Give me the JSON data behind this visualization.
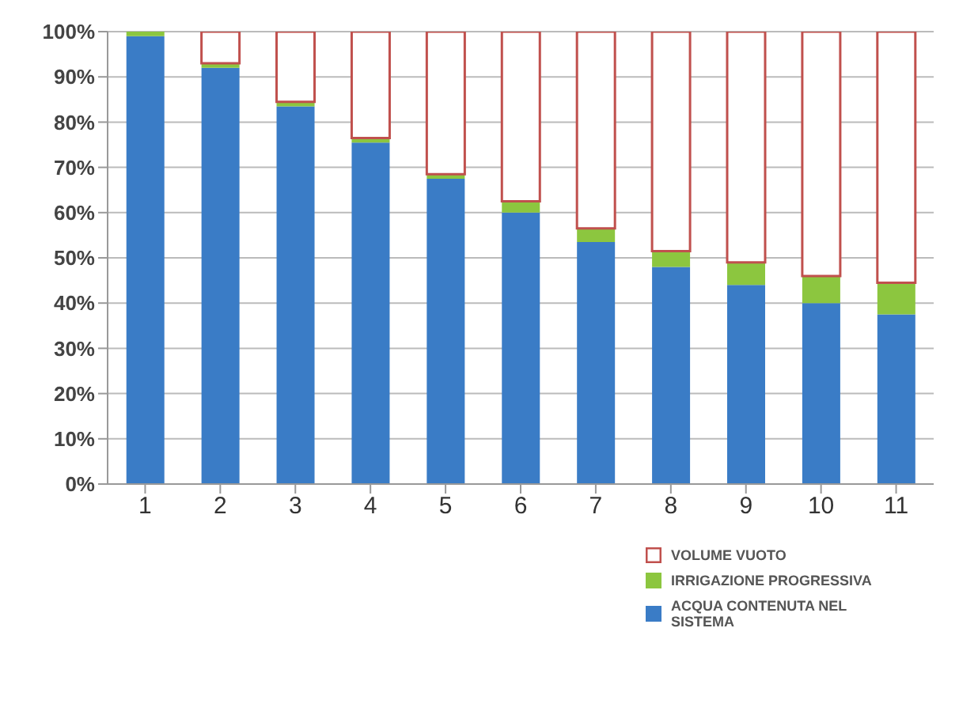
{
  "chart_data": {
    "type": "bar",
    "stacked": true,
    "categories": [
      "1",
      "2",
      "3",
      "4",
      "5",
      "6",
      "7",
      "8",
      "9",
      "10",
      "11"
    ],
    "series": [
      {
        "name": "ACQUA CONTENUTA NEL SISTEMA",
        "color": "#3a7cc6",
        "values": [
          99,
          92,
          83.5,
          75.5,
          67.5,
          60,
          53.5,
          48,
          44,
          40,
          37.5
        ]
      },
      {
        "name": "IRRIGAZIONE PROGRESSIVA",
        "color": "#8cc63f",
        "values": [
          1,
          1,
          1,
          1,
          1,
          2.5,
          3,
          3.5,
          5,
          6,
          7
        ]
      },
      {
        "name": "VOLUME VUOTO",
        "color": "#c0504d",
        "values": [
          0,
          7,
          15.5,
          23.5,
          31.5,
          37.5,
          43.5,
          48.5,
          51,
          54,
          55.5
        ]
      }
    ],
    "ylim": [
      0,
      100
    ],
    "yticks": [
      {
        "value": 0,
        "label": "0%"
      },
      {
        "value": 10,
        "label": "10%"
      },
      {
        "value": 20,
        "label": "20%"
      },
      {
        "value": 30,
        "label": "30%"
      },
      {
        "value": 40,
        "label": "40%"
      },
      {
        "value": 50,
        "label": "50%"
      },
      {
        "value": 60,
        "label": "60%"
      },
      {
        "value": 70,
        "label": "70%"
      },
      {
        "value": 80,
        "label": "80%"
      },
      {
        "value": 90,
        "label": "90%"
      },
      {
        "value": 100,
        "label": "100%"
      }
    ],
    "grid": "y",
    "legend": "bottom right"
  }
}
